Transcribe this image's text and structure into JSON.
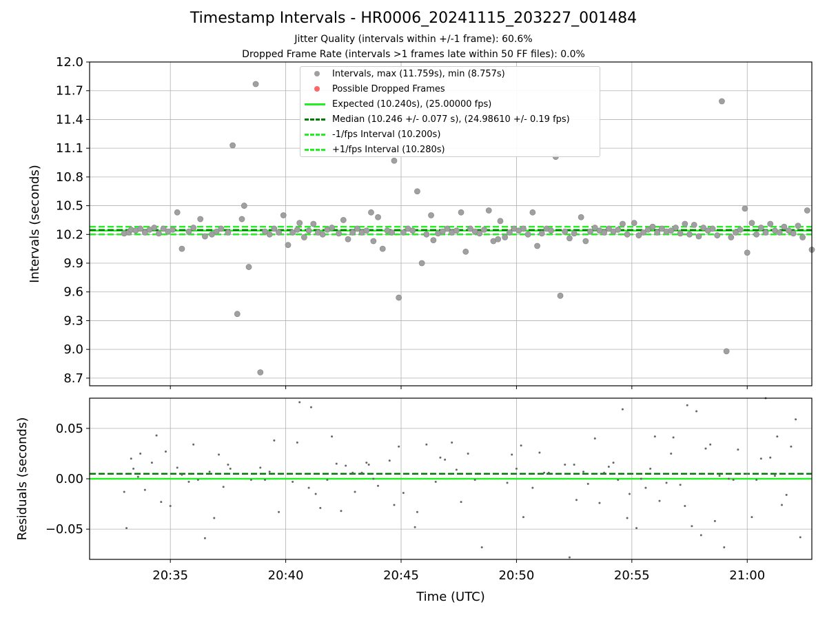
{
  "title": "Timestamp Intervals - HR0006_20241115_203227_001484",
  "subtitle_1": "Jitter Quality (intervals within +/-1 frame): 60.6%",
  "subtitle_2": "Dropped Frame Rate (intervals >1 frames late within 50 FF files): 0.0%",
  "legend": [
    {
      "label": "Intervals, max (11.759s), min (8.757s)",
      "kind": "marker",
      "color": "#a0a0a0"
    },
    {
      "label": "Possible Dropped Frames",
      "kind": "marker",
      "color": "#ff6666"
    },
    {
      "label": "Expected (10.240s), (25.00000 fps)",
      "kind": "solid",
      "color": "#22ee22"
    },
    {
      "label": "Median (10.246 +/- 0.077 s), (24.98610 +/- 0.19 fps)",
      "kind": "dashed",
      "color": "#007a00"
    },
    {
      "label": "-1/fps Interval (10.200s)",
      "kind": "dashed",
      "color": "#22ee22"
    },
    {
      "label": "+1/fps Interval (10.280s)",
      "kind": "dashed",
      "color": "#22ee22"
    }
  ],
  "chart_data": [
    {
      "type": "scatter",
      "ylabel": "Intervals (seconds)",
      "xlim_minutes": [
        31.5,
        62.8
      ],
      "ylim": [
        8.62,
        12.0
      ],
      "yticks": [
        8.7,
        9.0,
        9.3,
        9.6,
        9.9,
        10.2,
        10.5,
        10.8,
        11.1,
        11.4,
        11.7,
        12.0
      ],
      "ytick_labels": [
        "8.7",
        "9.0",
        "9.3",
        "9.6",
        "9.9",
        "10.2",
        "10.5",
        "10.8",
        "11.1",
        "11.4",
        "11.7",
        "12.0"
      ],
      "grid": true,
      "lines": [
        {
          "name": "expected",
          "y": 10.24,
          "style": "solid",
          "color": "#22ee22"
        },
        {
          "name": "median",
          "y": 10.246,
          "style": "dashed",
          "color": "#007a00"
        },
        {
          "name": "minus_one_fps",
          "y": 10.2,
          "style": "dashed",
          "color": "#22ee22"
        },
        {
          "name": "plus_one_fps",
          "y": 10.28,
          "style": "dashed",
          "color": "#22ee22"
        }
      ],
      "points": [
        [
          33.0,
          10.21
        ],
        [
          33.2,
          10.22
        ],
        [
          33.3,
          10.25
        ],
        [
          33.5,
          10.24
        ],
        [
          33.7,
          10.26
        ],
        [
          33.9,
          10.22
        ],
        [
          34.1,
          10.25
        ],
        [
          34.3,
          10.27
        ],
        [
          34.5,
          10.21
        ],
        [
          34.7,
          10.26
        ],
        [
          34.9,
          10.23
        ],
        [
          35.1,
          10.25
        ],
        [
          35.3,
          10.43
        ],
        [
          35.5,
          10.05
        ],
        [
          35.8,
          10.23
        ],
        [
          36.0,
          10.27
        ],
        [
          36.3,
          10.36
        ],
        [
          36.5,
          10.18
        ],
        [
          36.8,
          10.2
        ],
        [
          37.0,
          10.23
        ],
        [
          37.2,
          10.26
        ],
        [
          37.5,
          10.22
        ],
        [
          37.7,
          11.13
        ],
        [
          37.9,
          9.37
        ],
        [
          38.1,
          10.36
        ],
        [
          38.2,
          10.5
        ],
        [
          38.4,
          9.86
        ],
        [
          38.7,
          11.77
        ],
        [
          38.9,
          8.76
        ],
        [
          39.1,
          10.23
        ],
        [
          39.3,
          10.2
        ],
        [
          39.5,
          10.26
        ],
        [
          39.7,
          10.22
        ],
        [
          39.9,
          10.4
        ],
        [
          40.1,
          10.09
        ],
        [
          40.3,
          10.22
        ],
        [
          40.5,
          10.25
        ],
        [
          40.6,
          10.32
        ],
        [
          40.8,
          10.17
        ],
        [
          41.0,
          10.24
        ],
        [
          41.2,
          10.31
        ],
        [
          41.4,
          10.22
        ],
        [
          41.6,
          10.2
        ],
        [
          41.8,
          10.25
        ],
        [
          42.0,
          10.27
        ],
        [
          42.3,
          10.21
        ],
        [
          42.5,
          10.35
        ],
        [
          42.7,
          10.15
        ],
        [
          42.9,
          10.22
        ],
        [
          43.1,
          10.26
        ],
        [
          43.3,
          10.22
        ],
        [
          43.5,
          10.24
        ],
        [
          43.7,
          10.43
        ],
        [
          43.8,
          10.13
        ],
        [
          44.0,
          10.38
        ],
        [
          44.2,
          10.05
        ],
        [
          44.4,
          10.24
        ],
        [
          44.6,
          10.22
        ],
        [
          44.7,
          10.97
        ],
        [
          44.9,
          9.54
        ],
        [
          45.1,
          10.22
        ],
        [
          45.3,
          10.26
        ],
        [
          45.5,
          10.24
        ],
        [
          45.7,
          10.65
        ],
        [
          45.9,
          9.9
        ],
        [
          46.1,
          10.2
        ],
        [
          46.3,
          10.4
        ],
        [
          46.4,
          10.14
        ],
        [
          46.6,
          10.21
        ],
        [
          46.8,
          10.23
        ],
        [
          47.0,
          10.26
        ],
        [
          47.2,
          10.22
        ],
        [
          47.4,
          10.24
        ],
        [
          47.6,
          10.43
        ],
        [
          47.8,
          10.02
        ],
        [
          48.0,
          10.26
        ],
        [
          48.2,
          10.23
        ],
        [
          48.4,
          10.21
        ],
        [
          48.6,
          10.25
        ],
        [
          48.8,
          10.45
        ],
        [
          49.0,
          10.13
        ],
        [
          49.2,
          10.15
        ],
        [
          49.3,
          10.34
        ],
        [
          49.5,
          10.17
        ],
        [
          49.7,
          10.22
        ],
        [
          49.9,
          10.26
        ],
        [
          50.1,
          10.24
        ],
        [
          50.3,
          10.26
        ],
        [
          50.5,
          10.2
        ],
        [
          50.7,
          10.43
        ],
        [
          50.9,
          10.08
        ],
        [
          51.1,
          10.21
        ],
        [
          51.3,
          10.26
        ],
        [
          51.5,
          10.24
        ],
        [
          51.7,
          11.01
        ],
        [
          51.9,
          9.56
        ],
        [
          52.1,
          10.23
        ],
        [
          52.3,
          10.16
        ],
        [
          52.5,
          10.21
        ],
        [
          52.8,
          10.38
        ],
        [
          53.0,
          10.13
        ],
        [
          53.2,
          10.23
        ],
        [
          53.4,
          10.27
        ],
        [
          53.6,
          10.24
        ],
        [
          53.8,
          10.22
        ],
        [
          54.0,
          10.26
        ],
        [
          54.2,
          10.23
        ],
        [
          54.4,
          10.25
        ],
        [
          54.6,
          10.31
        ],
        [
          54.8,
          10.2
        ],
        [
          55.1,
          10.32
        ],
        [
          55.3,
          10.19
        ],
        [
          55.5,
          10.22
        ],
        [
          55.7,
          10.25
        ],
        [
          55.9,
          10.28
        ],
        [
          56.1,
          10.22
        ],
        [
          56.3,
          10.26
        ],
        [
          56.5,
          10.23
        ],
        [
          56.7,
          10.24
        ],
        [
          56.9,
          10.27
        ],
        [
          57.1,
          10.21
        ],
        [
          57.3,
          10.31
        ],
        [
          57.5,
          10.2
        ],
        [
          57.7,
          10.3
        ],
        [
          57.9,
          10.18
        ],
        [
          58.1,
          10.27
        ],
        [
          58.3,
          10.24
        ],
        [
          58.5,
          10.26
        ],
        [
          58.7,
          10.19
        ],
        [
          58.9,
          11.59
        ],
        [
          59.1,
          8.98
        ],
        [
          59.3,
          10.17
        ],
        [
          59.5,
          10.22
        ],
        [
          59.7,
          10.25
        ],
        [
          59.9,
          10.47
        ],
        [
          60.0,
          10.01
        ],
        [
          60.2,
          10.32
        ],
        [
          60.4,
          10.2
        ],
        [
          60.6,
          10.27
        ],
        [
          60.8,
          10.22
        ],
        [
          61.0,
          10.31
        ],
        [
          61.2,
          10.24
        ],
        [
          61.4,
          10.22
        ],
        [
          61.6,
          10.28
        ],
        [
          61.8,
          10.24
        ],
        [
          62.0,
          10.21
        ],
        [
          62.2,
          10.29
        ],
        [
          62.4,
          10.17
        ],
        [
          62.6,
          10.45
        ],
        [
          62.8,
          10.04
        ]
      ]
    },
    {
      "type": "scatter",
      "xlabel": "Time (UTC)",
      "ylabel": "Residuals (seconds)",
      "xlim_minutes": [
        31.5,
        62.8
      ],
      "ylim": [
        -0.08,
        0.08
      ],
      "yticks": [
        -0.05,
        0.0,
        0.05
      ],
      "ytick_labels": [
        "−0.05",
        "0.00",
        "0.05"
      ],
      "xticks_minutes": [
        35,
        40,
        45,
        50,
        55,
        60
      ],
      "xtick_labels": [
        "20:35",
        "20:40",
        "20:45",
        "20:50",
        "20:55",
        "21:00"
      ],
      "grid": true,
      "lines": [
        {
          "name": "expected",
          "y": 0.0,
          "style": "solid",
          "color": "#22ee22"
        },
        {
          "name": "median",
          "y": 0.005,
          "style": "dashed",
          "color": "#007a00"
        }
      ],
      "points": [
        [
          33.0,
          -0.013
        ],
        [
          33.1,
          -0.049
        ],
        [
          33.3,
          0.02
        ],
        [
          33.4,
          0.01
        ],
        [
          33.6,
          0.002
        ],
        [
          33.7,
          0.025
        ],
        [
          33.9,
          -0.011
        ],
        [
          34.2,
          0.016
        ],
        [
          34.4,
          0.043
        ],
        [
          34.6,
          -0.023
        ],
        [
          34.8,
          0.027
        ],
        [
          35.0,
          -0.027
        ],
        [
          35.3,
          0.011
        ],
        [
          35.5,
          0.004
        ],
        [
          35.8,
          -0.003
        ],
        [
          36.0,
          0.034
        ],
        [
          36.2,
          -0.001
        ],
        [
          36.5,
          -0.059
        ],
        [
          36.7,
          0.007
        ],
        [
          36.9,
          -0.039
        ],
        [
          37.1,
          0.024
        ],
        [
          37.3,
          -0.008
        ],
        [
          37.5,
          0.014
        ],
        [
          37.6,
          0.01
        ],
        [
          38.5,
          -0.001
        ],
        [
          38.9,
          0.011
        ],
        [
          39.1,
          -0.001
        ],
        [
          39.3,
          0.007
        ],
        [
          39.5,
          0.038
        ],
        [
          39.7,
          -0.033
        ],
        [
          40.3,
          -0.003
        ],
        [
          40.5,
          0.036
        ],
        [
          40.6,
          0.076
        ],
        [
          41.0,
          -0.009
        ],
        [
          41.1,
          0.071
        ],
        [
          41.3,
          -0.015
        ],
        [
          41.5,
          -0.029
        ],
        [
          41.8,
          -0.001
        ],
        [
          42.0,
          0.042
        ],
        [
          42.2,
          0.015
        ],
        [
          42.4,
          -0.032
        ],
        [
          42.6,
          0.013
        ],
        [
          42.9,
          0.006
        ],
        [
          43.0,
          -0.013
        ],
        [
          43.3,
          0.006
        ],
        [
          43.5,
          0.016
        ],
        [
          43.6,
          0.014
        ],
        [
          43.8,
          0.0
        ],
        [
          44.0,
          -0.007
        ],
        [
          44.5,
          0.018
        ],
        [
          44.7,
          -0.026
        ],
        [
          44.9,
          0.032
        ],
        [
          45.1,
          -0.014
        ],
        [
          45.6,
          -0.048
        ],
        [
          45.7,
          -0.033
        ],
        [
          46.1,
          0.034
        ],
        [
          46.5,
          -0.003
        ],
        [
          46.7,
          0.021
        ],
        [
          46.9,
          0.019
        ],
        [
          47.2,
          0.036
        ],
        [
          47.4,
          0.009
        ],
        [
          47.6,
          -0.023
        ],
        [
          47.9,
          0.025
        ],
        [
          48.2,
          -0.001
        ],
        [
          48.5,
          -0.068
        ],
        [
          49.6,
          -0.004
        ],
        [
          49.8,
          0.024
        ],
        [
          50.0,
          0.01
        ],
        [
          50.2,
          0.033
        ],
        [
          50.3,
          -0.038
        ],
        [
          50.7,
          -0.009
        ],
        [
          51.0,
          0.026
        ],
        [
          51.2,
          0.006
        ],
        [
          51.4,
          0.006
        ],
        [
          52.1,
          0.014
        ],
        [
          52.3,
          -0.078
        ],
        [
          52.5,
          0.014
        ],
        [
          52.6,
          -0.021
        ],
        [
          52.9,
          0.007
        ],
        [
          53.1,
          -0.005
        ],
        [
          53.4,
          0.04
        ],
        [
          53.6,
          -0.024
        ],
        [
          53.8,
          0.006
        ],
        [
          54.0,
          0.012
        ],
        [
          54.2,
          0.016
        ],
        [
          54.4,
          -0.001
        ],
        [
          54.6,
          0.069
        ],
        [
          54.8,
          -0.039
        ],
        [
          54.9,
          -0.015
        ],
        [
          55.2,
          -0.049
        ],
        [
          55.4,
          0.0
        ],
        [
          55.6,
          -0.009
        ],
        [
          55.8,
          0.01
        ],
        [
          56.0,
          0.042
        ],
        [
          56.2,
          -0.022
        ],
        [
          56.5,
          -0.004
        ],
        [
          56.7,
          0.025
        ],
        [
          56.8,
          0.041
        ],
        [
          57.1,
          -0.006
        ],
        [
          57.3,
          -0.027
        ],
        [
          57.4,
          0.073
        ],
        [
          57.6,
          -0.047
        ],
        [
          57.8,
          0.067
        ],
        [
          58.0,
          -0.056
        ],
        [
          58.2,
          0.03
        ],
        [
          58.4,
          0.034
        ],
        [
          58.6,
          -0.042
        ],
        [
          58.8,
          0.003
        ],
        [
          59.0,
          -0.068
        ],
        [
          59.2,
          0.0
        ],
        [
          59.4,
          -0.001
        ],
        [
          59.6,
          0.029
        ],
        [
          60.0,
          0.005
        ],
        [
          60.2,
          -0.038
        ],
        [
          60.4,
          -0.001
        ],
        [
          60.6,
          0.02
        ],
        [
          60.8,
          0.08
        ],
        [
          61.0,
          0.021
        ],
        [
          61.2,
          0.003
        ],
        [
          61.3,
          0.042
        ],
        [
          61.5,
          -0.026
        ],
        [
          61.7,
          -0.016
        ],
        [
          61.9,
          0.032
        ],
        [
          62.1,
          0.059
        ],
        [
          62.3,
          -0.058
        ]
      ]
    }
  ]
}
